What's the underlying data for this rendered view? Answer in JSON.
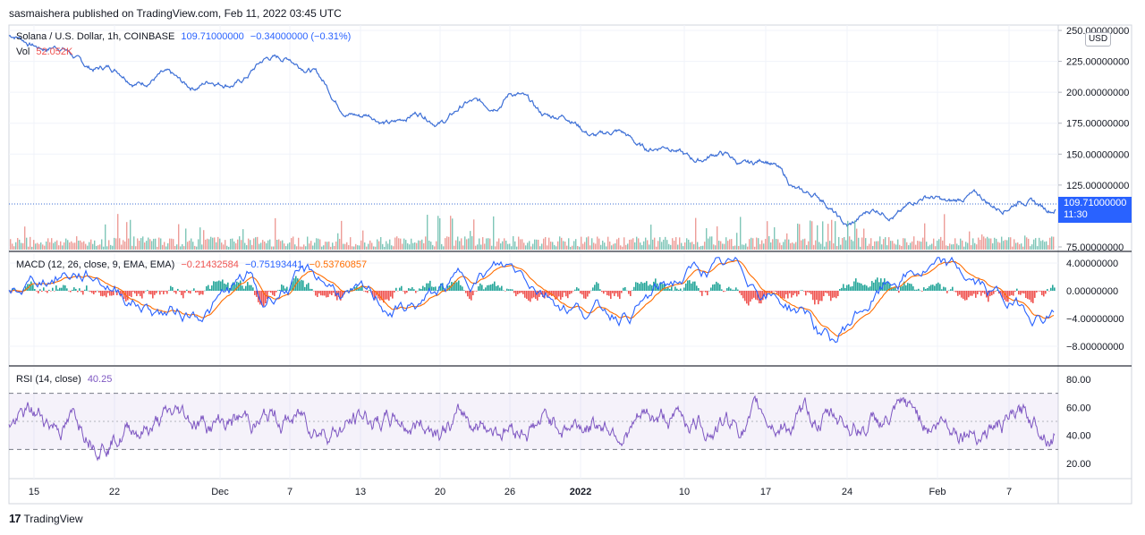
{
  "header": {
    "text": "sasmaishera published on TradingView.com, Feb 11, 2022 03:45 UTC"
  },
  "footer": {
    "logo": "17",
    "brand": "TradingView"
  },
  "colors": {
    "price": "#3d6fd6",
    "volume_up": "#5fb8a6",
    "volume_down": "#e8857e",
    "macd": "#2962ff",
    "signal": "#ff6d00",
    "hist_up": "#26a69a",
    "hist_down": "#ef5350",
    "rsi": "#7e57c2",
    "rsi_band": "#7e57c2",
    "grid": "#f0f3fa",
    "price_tag": "#2962ff"
  },
  "legend": {
    "price_title": "Solana / U.S. Dollar, 1h, COINBASE",
    "price_value": "109.71000000",
    "price_change": "−0.34000000 (−0.31%)",
    "vol_label": "Vol",
    "vol_value": "52.052K",
    "macd_title": "MACD (12, 26, close, 9, EMA, EMA)",
    "macd_hist": "−0.21432584",
    "macd_line": "−0.75193441",
    "macd_signal": "−0.53760857",
    "rsi_title": "RSI (14, close)",
    "rsi_value": "40.25"
  },
  "price_axis": {
    "currency": "USD",
    "last_price": "109.71000000",
    "countdown": "11:30"
  },
  "chart_data": [
    {
      "type": "line",
      "title": "Solana / U.S. Dollar, 1h, COINBASE",
      "y_ticks": [
        "250.00000000",
        "225.00000000",
        "200.00000000",
        "175.00000000",
        "150.00000000",
        "125.00000000",
        "75.00000000"
      ],
      "ylim": [
        75,
        250
      ],
      "x_ticks": [
        "15",
        "22",
        "Dec",
        "7",
        "13",
        "20",
        "26",
        "2022",
        "10",
        "17",
        "24",
        "Feb",
        "7"
      ],
      "series": [
        {
          "name": "Solana / U.S. Dollar",
          "x": [
            "15",
            "22",
            "Dec",
            "7",
            "13",
            "20",
            "26",
            "2022",
            "10",
            "17",
            "24",
            "Feb",
            "7"
          ],
          "values": [
            242,
            215,
            205,
            232,
            178,
            180,
            198,
            172,
            150,
            143,
            95,
            115,
            110
          ]
        }
      ],
      "last_value": 109.71
    },
    {
      "type": "bar",
      "title": "Vol",
      "series": [
        {
          "name": "Vol",
          "values": [
            52.052
          ]
        }
      ]
    },
    {
      "type": "line",
      "title": "MACD (12, 26, close, 9, EMA, EMA)",
      "y_ticks": [
        "4.00000000",
        "0.00000000",
        "−4.00000000",
        "−8.00000000"
      ],
      "ylim": [
        -10,
        5
      ],
      "last_values": {
        "histogram": -0.21432584,
        "macd": -0.75193441,
        "signal": -0.53760857
      }
    },
    {
      "type": "line",
      "title": "RSI (14, close)",
      "y_ticks": [
        "80.00",
        "60.00",
        "40.00",
        "20.00"
      ],
      "ylim": [
        10,
        90
      ],
      "bands": [
        30,
        70
      ],
      "last_value": 40.25
    }
  ]
}
